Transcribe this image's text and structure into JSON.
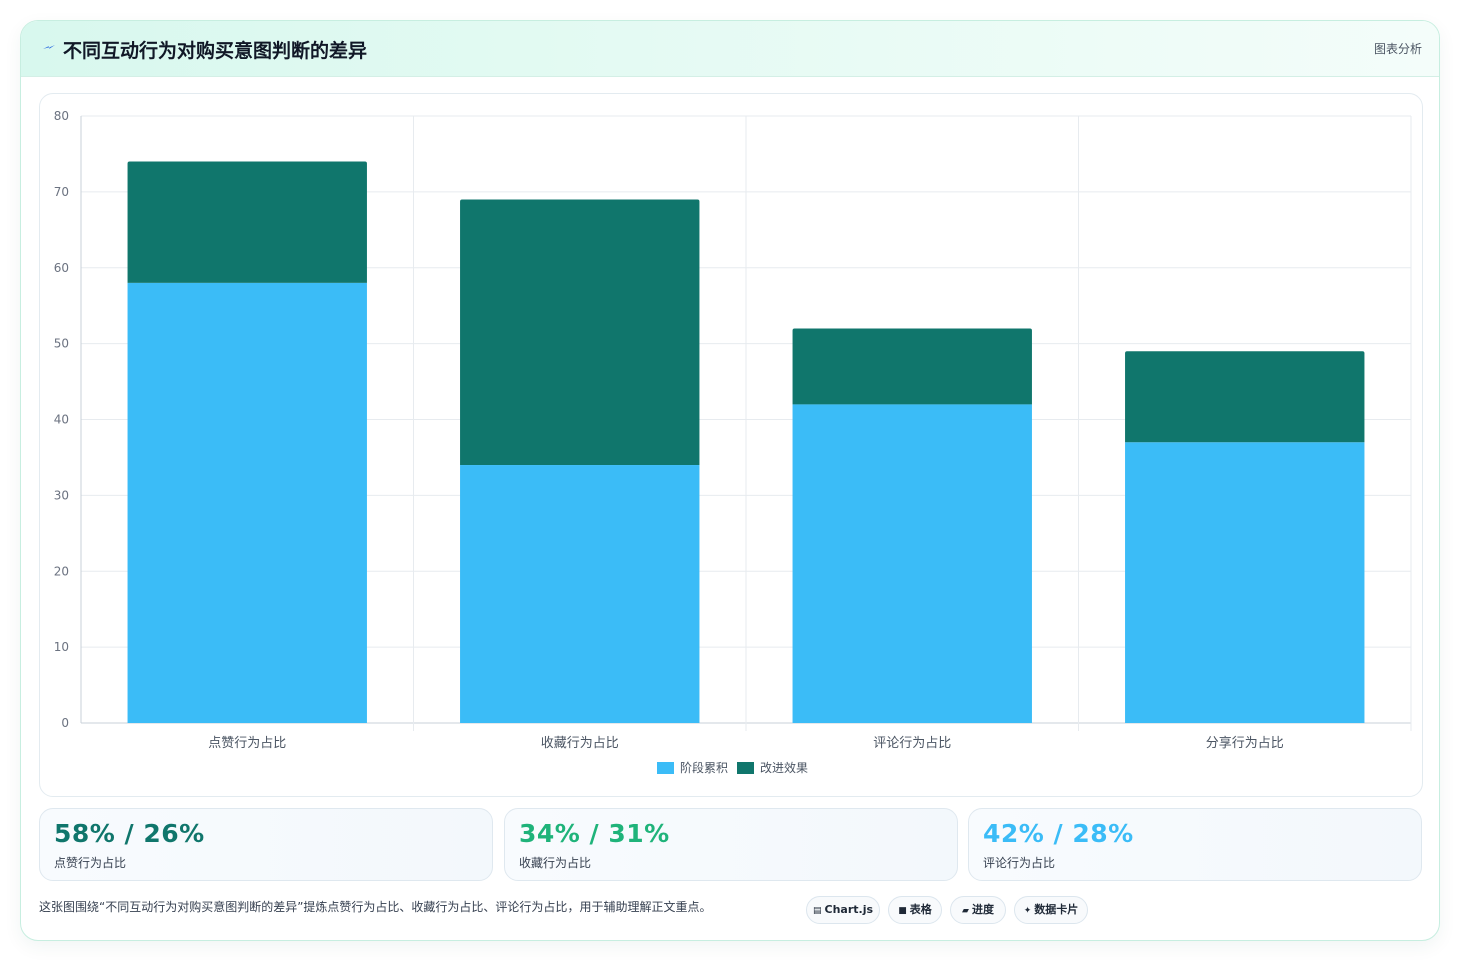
{
  "header": {
    "title": "不同互动行为对购买意图判断的差异",
    "tag": "图表分析",
    "icon": "bolt-icon"
  },
  "chart_data": {
    "type": "bar",
    "stacked": true,
    "categories": [
      "点赞行为占比",
      "收藏行为占比",
      "评论行为占比",
      "分享行为占比"
    ],
    "series": [
      {
        "name": "阶段累积",
        "color": "#3bbcf7",
        "values": [
          58,
          34,
          42,
          37
        ]
      },
      {
        "name": "改进效果",
        "color": "#10766c",
        "values": [
          16,
          35,
          10,
          12
        ]
      }
    ],
    "ylim": [
      0,
      80
    ],
    "yticks": [
      0,
      10,
      20,
      30,
      40,
      50,
      60,
      70,
      80
    ],
    "grid": true,
    "legend": "bottom-center"
  },
  "kpis": [
    {
      "value": "58% / 26%",
      "label": "点赞行为占比",
      "color": "#10766c"
    },
    {
      "value": "34% / 31%",
      "label": "收藏行为占比",
      "color": "#1fb37a"
    },
    {
      "value": "42% / 28%",
      "label": "评论行为占比",
      "color": "#3bbcf7"
    }
  ],
  "footer": {
    "note": "这张图围绕“不同互动行为对购买意图判断的差异”提炼点赞行为占比、收藏行为占比、评论行为占比，用于辅助理解正文重点。",
    "pills": [
      {
        "label": "Chart.js",
        "icon": "▤"
      },
      {
        "label": "表格",
        "icon": "■"
      },
      {
        "label": "进度",
        "icon": "▰"
      },
      {
        "label": "数据卡片",
        "icon": "✦"
      }
    ]
  }
}
